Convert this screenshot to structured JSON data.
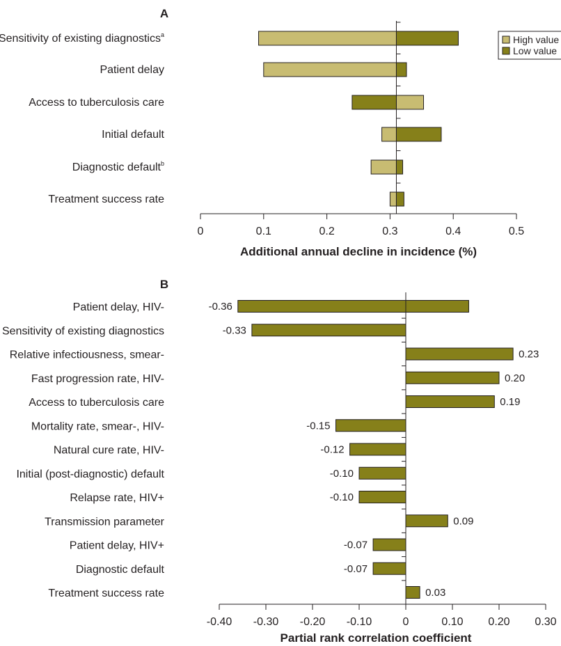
{
  "colors": {
    "high": "#c8bc72",
    "low": "#86801a",
    "stroke": "#231f20",
    "text": "#231f20"
  },
  "chart_data": [
    {
      "type": "bar",
      "orientation": "horizontal",
      "style": "tornado",
      "panel_label": "A",
      "xlabel": "Additional annual decline in incidence (%)",
      "baseline": 0.31,
      "xlim": [
        0,
        0.5
      ],
      "xticks": [
        "0",
        "0.1",
        "0.2",
        "0.3",
        "0.4",
        "0.5"
      ],
      "xtick_values": [
        0,
        0.1,
        0.2,
        0.3,
        0.4,
        0.5
      ],
      "categories": [
        "Sensitivity of existing diagnostics",
        "Patient delay",
        "Access to  tuberculosis care",
        "Initial default",
        "Diagnostic default",
        "Treatment success rate"
      ],
      "superscripts": [
        "a",
        "",
        "",
        "",
        "b",
        ""
      ],
      "series": [
        {
          "name": "High value",
          "values": [
            0.092,
            0.1,
            0.353,
            0.287,
            0.27,
            0.3
          ]
        },
        {
          "name": "Low value",
          "values": [
            0.408,
            0.326,
            0.24,
            0.381,
            0.32,
            0.322
          ]
        }
      ],
      "legend": {
        "position": "top-right",
        "entries": [
          "High value",
          "Low value"
        ]
      },
      "grid": false
    },
    {
      "type": "bar",
      "orientation": "horizontal",
      "panel_label": "B",
      "xlabel": "Partial rank correlation coefficient",
      "xlim": [
        -0.4,
        0.3
      ],
      "xticks": [
        "-0.40",
        "-0.30",
        "-0.20",
        "-0.10",
        "0",
        "0.10",
        "0.20",
        "0.30"
      ],
      "xtick_values": [
        -0.4,
        -0.3,
        -0.2,
        -0.1,
        0,
        0.1,
        0.2,
        0.3
      ],
      "categories": [
        "Patient delay, HIV-",
        "Sensitivity of existing diagnostics",
        "Relative  infectiousness, smear-",
        "Fast progression rate, HIV-",
        "Access to tuberculosis care",
        "Mortality rate, smear-, HIV-",
        "Natural cure rate, HIV-",
        "Initial (post-diagnostic) default",
        "Relapse rate, HIV+",
        "Transmission parameter",
        "Patient delay, HIV+",
        "Diagnostic default",
        "Treatment success rate"
      ],
      "values": [
        -0.36,
        -0.33,
        0.23,
        0.2,
        0.19,
        -0.15,
        -0.12,
        -0.1,
        -0.1,
        0.09,
        -0.07,
        -0.07,
        0.03
      ],
      "value_labels": [
        "-0.36",
        "-0.33",
        "0.23",
        "0.20",
        "0.19",
        "-0.15",
        "-0.12",
        "-0.10",
        "-0.10",
        "0.09",
        "-0.07",
        "-0.07",
        "0.03"
      ],
      "extra_bars": [
        {
          "category_index": 0,
          "value": 0.135
        }
      ],
      "grid": false
    }
  ]
}
